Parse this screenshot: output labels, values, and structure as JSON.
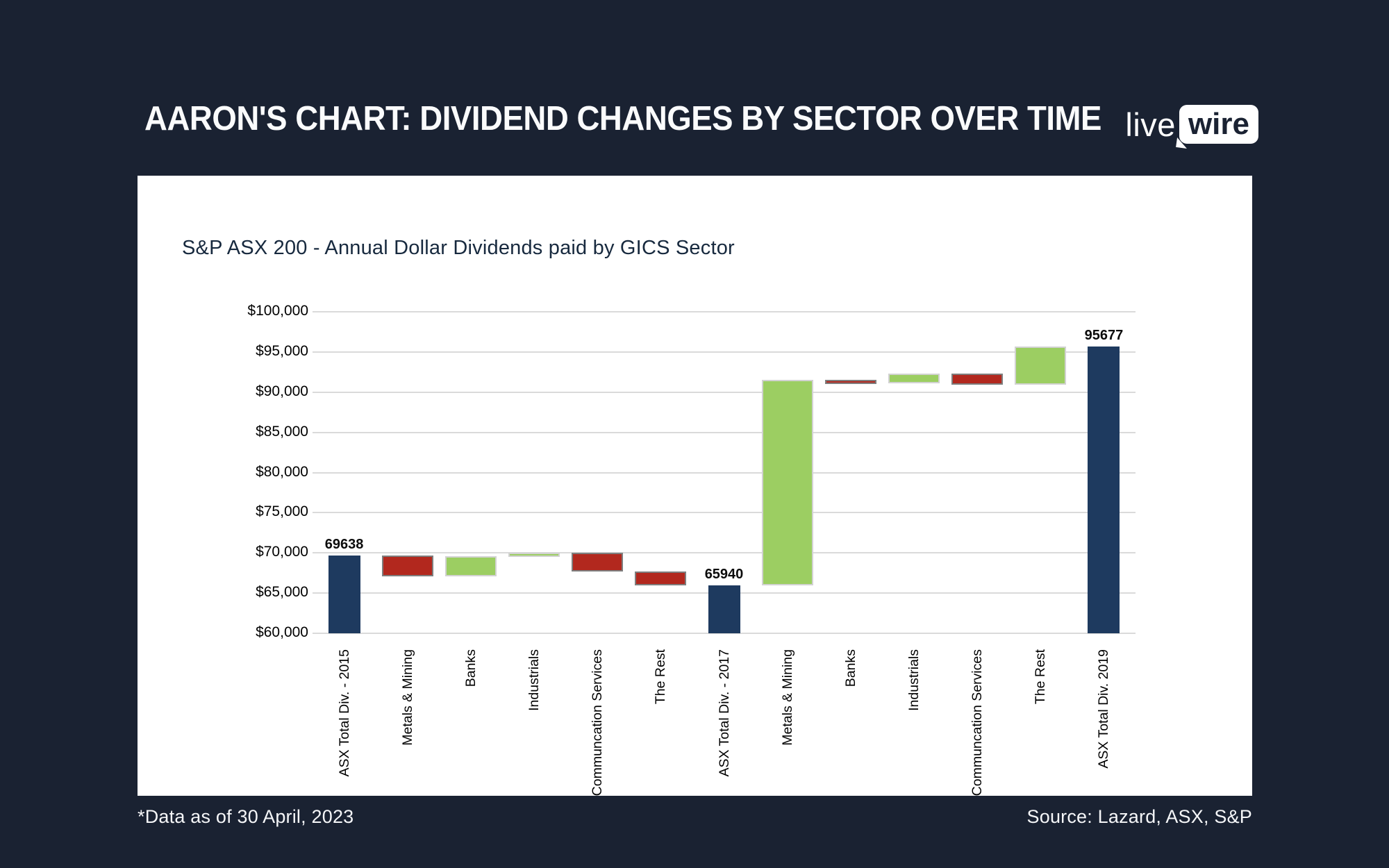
{
  "header": {
    "title": "AARON'S CHART: DIVIDEND CHANGES BY SECTOR OVER TIME",
    "logo_live": "live",
    "logo_wire": "wire"
  },
  "footer": {
    "note": "*Data as of 30 April, 2023",
    "source": "Source: Lazard, ASX, S&P"
  },
  "chart_data": {
    "type": "bar",
    "subtype": "waterfall",
    "title": "S&P ASX 200 - Annual Dollar Dividends paid by GICS Sector",
    "legend": false,
    "grid": true,
    "y_axis": {
      "min": 60000,
      "max": 100000,
      "tick_step": 5000,
      "tick_labels": [
        "$100,000",
        "$95,000",
        "$90,000",
        "$85,000",
        "$80,000",
        "$75,000",
        "$70,000",
        "$65,000",
        "$60,000"
      ],
      "tick_values": [
        100000,
        95000,
        90000,
        85000,
        80000,
        75000,
        70000,
        65000,
        60000
      ]
    },
    "categories": [
      "ASX Total Div. - 2015",
      "Metals & Mining",
      "Banks",
      "Industrials",
      "Communcation Services",
      "The Rest",
      "ASX Total Div. - 2017",
      "Metals & Mining",
      "Banks",
      "Industrials",
      "Communcation Services",
      "The Rest",
      "ASX Total Div. 2019"
    ],
    "bars": [
      {
        "category": "ASX Total Div. - 2015",
        "role": "total",
        "start": 60000,
        "end": 69638,
        "label": "69638"
      },
      {
        "category": "Metals & Mining",
        "role": "decrease",
        "start": 69638,
        "end": 67100
      },
      {
        "category": "Banks",
        "role": "increase",
        "start": 67100,
        "end": 69600
      },
      {
        "category": "Industrials",
        "role": "increase",
        "start": 69600,
        "end": 70050
      },
      {
        "category": "Communcation Services",
        "role": "decrease",
        "start": 70050,
        "end": 67700
      },
      {
        "category": "The Rest",
        "role": "decrease",
        "start": 67700,
        "end": 65940
      },
      {
        "category": "ASX Total Div. - 2017",
        "role": "total",
        "start": 60000,
        "end": 65940,
        "label": "65940"
      },
      {
        "category": "Metals & Mining",
        "role": "increase",
        "start": 65940,
        "end": 91500
      },
      {
        "category": "Banks",
        "role": "decrease",
        "start": 91500,
        "end": 91100
      },
      {
        "category": "Industrials",
        "role": "increase",
        "start": 91100,
        "end": 92350
      },
      {
        "category": "Communcation Services",
        "role": "decrease",
        "start": 92350,
        "end": 90900
      },
      {
        "category": "The Rest",
        "role": "increase",
        "start": 90900,
        "end": 95677
      },
      {
        "category": "ASX Total Div. 2019",
        "role": "total",
        "start": 60000,
        "end": 95677,
        "label": "95677"
      }
    ],
    "colors": {
      "total": "#1E3A5F",
      "increase": "#9CCE62",
      "decrease": "#B2281E",
      "background": "#1A2232",
      "panel": "#FFFFFF",
      "gridline": "#DADADA"
    }
  }
}
